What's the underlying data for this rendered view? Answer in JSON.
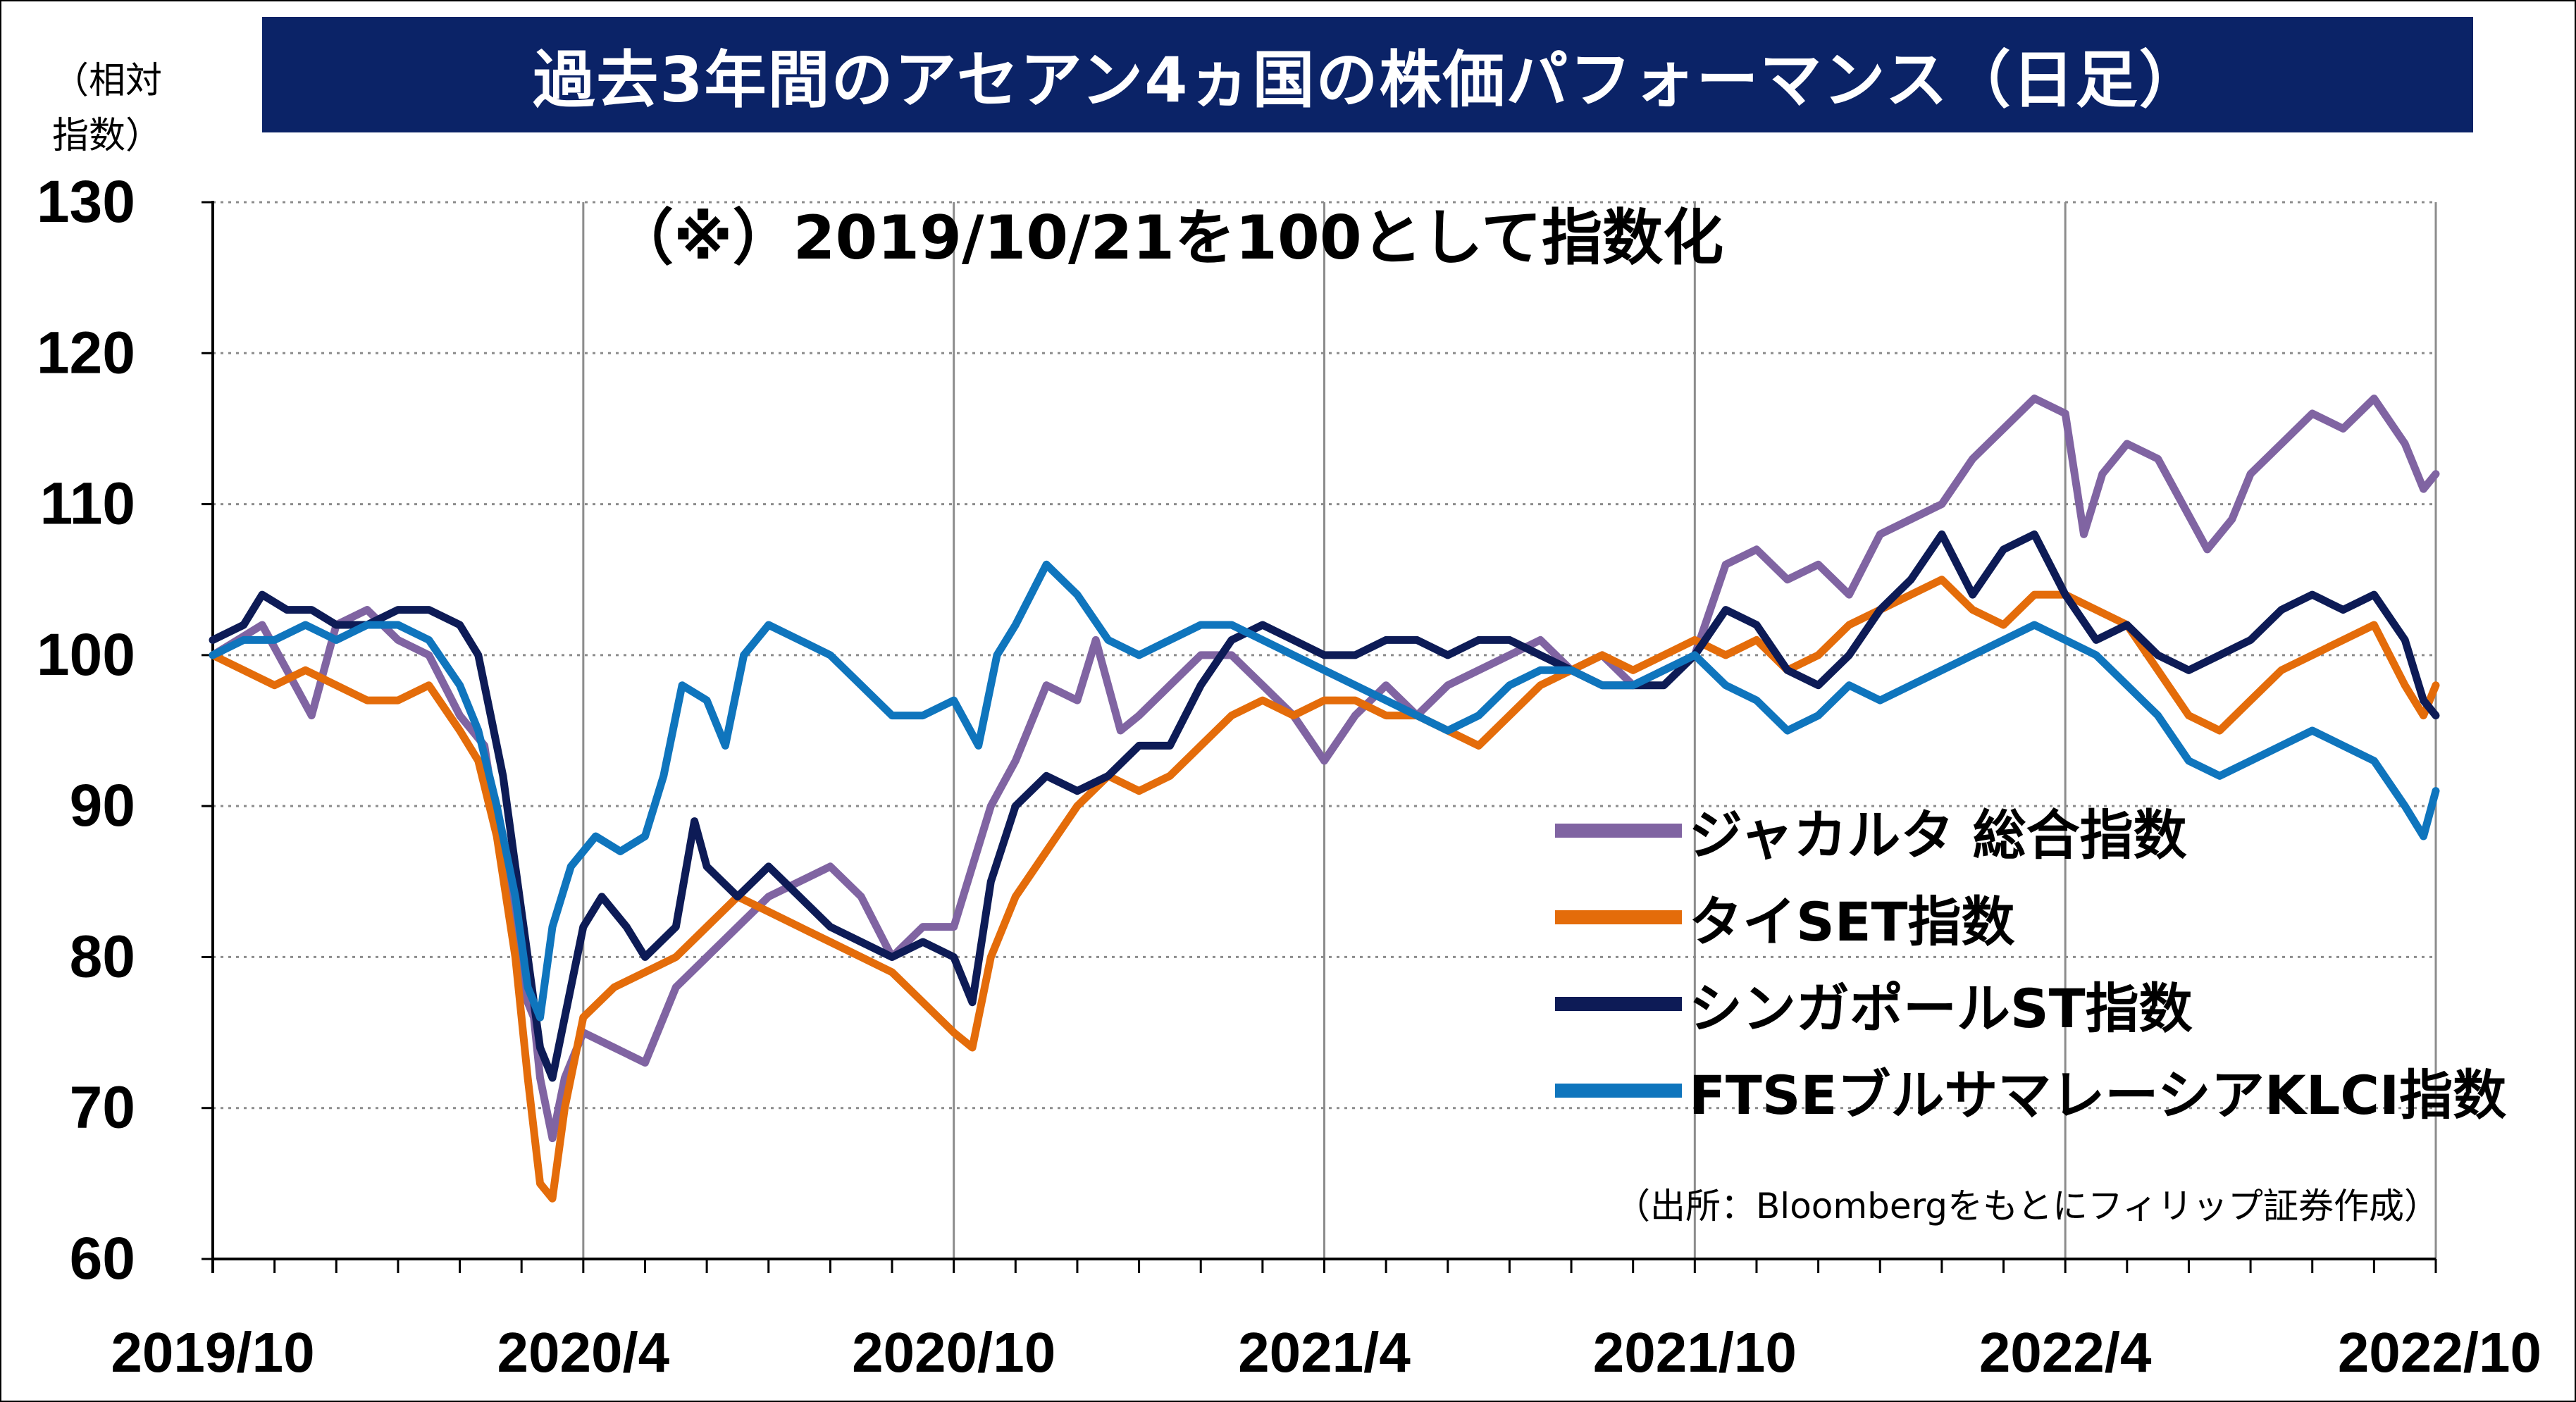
{
  "chart_data": {
    "type": "line",
    "title": "過去3年間のアセアン4ヵ国の株価パフォーマンス（日足）",
    "subtitle": "（※）2019/10/21を100として指数化",
    "y_unit_lines": [
      "（相対",
      "指数）"
    ],
    "source": "（出所：Bloombergをもとにフィリップ証券作成）",
    "x_tick_labels": [
      "2019/10",
      "2020/4",
      "2020/10",
      "2021/4",
      "2021/10",
      "2022/4",
      "2022/10"
    ],
    "y_tick_labels": [
      "60",
      "70",
      "80",
      "90",
      "100",
      "110",
      "120",
      "130"
    ],
    "ylim": [
      60,
      130
    ],
    "y_grid_step": 10,
    "x_range_months": [
      0,
      36
    ],
    "grid": true,
    "legend_position": "lower-right",
    "title_bar_color": "#0b2367",
    "series": [
      {
        "name": "ジャカルタ 総合指数",
        "color": "#8064a2",
        "points": [
          [
            0,
            100
          ],
          [
            0.4,
            101
          ],
          [
            0.8,
            102
          ],
          [
            1.2,
            99
          ],
          [
            1.6,
            96
          ],
          [
            2,
            102
          ],
          [
            2.5,
            103
          ],
          [
            3,
            101
          ],
          [
            3.5,
            100
          ],
          [
            4,
            96
          ],
          [
            4.4,
            94
          ],
          [
            4.7,
            86
          ],
          [
            5,
            78
          ],
          [
            5.2,
            76
          ],
          [
            5.3,
            72
          ],
          [
            5.5,
            68
          ],
          [
            5.7,
            72
          ],
          [
            6,
            75
          ],
          [
            6.5,
            74
          ],
          [
            7,
            73
          ],
          [
            7.5,
            78
          ],
          [
            8,
            80
          ],
          [
            8.5,
            82
          ],
          [
            9,
            84
          ],
          [
            10,
            86
          ],
          [
            10.5,
            84
          ],
          [
            11,
            80
          ],
          [
            11.5,
            82
          ],
          [
            12,
            82
          ],
          [
            12.3,
            86
          ],
          [
            12.6,
            90
          ],
          [
            13,
            93
          ],
          [
            13.5,
            98
          ],
          [
            14,
            97
          ],
          [
            14.3,
            101
          ],
          [
            14.7,
            95
          ],
          [
            15,
            96
          ],
          [
            15.5,
            98
          ],
          [
            16,
            100
          ],
          [
            16.5,
            100
          ],
          [
            17,
            98
          ],
          [
            17.5,
            96
          ],
          [
            18,
            93
          ],
          [
            18.5,
            96
          ],
          [
            19,
            98
          ],
          [
            19.5,
            96
          ],
          [
            20,
            98
          ],
          [
            20.5,
            99
          ],
          [
            21,
            100
          ],
          [
            21.5,
            101
          ],
          [
            22,
            99
          ],
          [
            22.5,
            100
          ],
          [
            23,
            98
          ],
          [
            23.5,
            99
          ],
          [
            24,
            100
          ],
          [
            24.5,
            106
          ],
          [
            25,
            107
          ],
          [
            25.5,
            105
          ],
          [
            26,
            106
          ],
          [
            26.5,
            104
          ],
          [
            27,
            108
          ],
          [
            27.5,
            109
          ],
          [
            28,
            110
          ],
          [
            28.5,
            113
          ],
          [
            29,
            115
          ],
          [
            29.5,
            117
          ],
          [
            30,
            116
          ],
          [
            30.3,
            108
          ],
          [
            30.6,
            112
          ],
          [
            31,
            114
          ],
          [
            31.5,
            113
          ],
          [
            31.9,
            110
          ],
          [
            32.3,
            107
          ],
          [
            32.7,
            109
          ],
          [
            33,
            112
          ],
          [
            33.5,
            114
          ],
          [
            34,
            116
          ],
          [
            34.5,
            115
          ],
          [
            35,
            117
          ],
          [
            35.5,
            114
          ],
          [
            35.8,
            111
          ],
          [
            36,
            112
          ]
        ]
      },
      {
        "name": "タイSET指数",
        "color": "#e46c0a",
        "points": [
          [
            0,
            100
          ],
          [
            0.5,
            99
          ],
          [
            1,
            98
          ],
          [
            1.5,
            99
          ],
          [
            2,
            98
          ],
          [
            2.5,
            97
          ],
          [
            3,
            97
          ],
          [
            3.5,
            98
          ],
          [
            4,
            95
          ],
          [
            4.3,
            93
          ],
          [
            4.6,
            88
          ],
          [
            4.9,
            80
          ],
          [
            5.1,
            72
          ],
          [
            5.3,
            65
          ],
          [
            5.5,
            64
          ],
          [
            5.7,
            70
          ],
          [
            6,
            76
          ],
          [
            6.5,
            78
          ],
          [
            7,
            79
          ],
          [
            7.5,
            80
          ],
          [
            8,
            82
          ],
          [
            8.5,
            84
          ],
          [
            9,
            83
          ],
          [
            9.5,
            82
          ],
          [
            10,
            81
          ],
          [
            10.5,
            80
          ],
          [
            11,
            79
          ],
          [
            11.5,
            77
          ],
          [
            12,
            75
          ],
          [
            12.3,
            74
          ],
          [
            12.6,
            80
          ],
          [
            13,
            84
          ],
          [
            13.5,
            87
          ],
          [
            14,
            90
          ],
          [
            14.5,
            92
          ],
          [
            15,
            91
          ],
          [
            15.5,
            92
          ],
          [
            16,
            94
          ],
          [
            16.5,
            96
          ],
          [
            17,
            97
          ],
          [
            17.5,
            96
          ],
          [
            18,
            97
          ],
          [
            18.5,
            97
          ],
          [
            19,
            96
          ],
          [
            19.5,
            96
          ],
          [
            20,
            95
          ],
          [
            20.5,
            94
          ],
          [
            21,
            96
          ],
          [
            21.5,
            98
          ],
          [
            22,
            99
          ],
          [
            22.5,
            100
          ],
          [
            23,
            99
          ],
          [
            23.5,
            100
          ],
          [
            24,
            101
          ],
          [
            24.5,
            100
          ],
          [
            25,
            101
          ],
          [
            25.5,
            99
          ],
          [
            26,
            100
          ],
          [
            26.5,
            102
          ],
          [
            27,
            103
          ],
          [
            27.5,
            104
          ],
          [
            28,
            105
          ],
          [
            28.5,
            103
          ],
          [
            29,
            102
          ],
          [
            29.5,
            104
          ],
          [
            30,
            104
          ],
          [
            30.5,
            103
          ],
          [
            31,
            102
          ],
          [
            31.5,
            99
          ],
          [
            32,
            96
          ],
          [
            32.5,
            95
          ],
          [
            33,
            97
          ],
          [
            33.5,
            99
          ],
          [
            34,
            100
          ],
          [
            34.5,
            101
          ],
          [
            35,
            102
          ],
          [
            35.5,
            98
          ],
          [
            35.8,
            96
          ],
          [
            36,
            98
          ]
        ]
      },
      {
        "name": "シンガポールST指数",
        "color": "#0d1b56",
        "points": [
          [
            0,
            101
          ],
          [
            0.5,
            102
          ],
          [
            0.8,
            104
          ],
          [
            1.2,
            103
          ],
          [
            1.6,
            103
          ],
          [
            2,
            102
          ],
          [
            2.5,
            102
          ],
          [
            3,
            103
          ],
          [
            3.5,
            103
          ],
          [
            4,
            102
          ],
          [
            4.3,
            100
          ],
          [
            4.5,
            96
          ],
          [
            4.7,
            92
          ],
          [
            4.9,
            86
          ],
          [
            5.1,
            80
          ],
          [
            5.3,
            74
          ],
          [
            5.5,
            72
          ],
          [
            5.7,
            76
          ],
          [
            6,
            82
          ],
          [
            6.3,
            84
          ],
          [
            6.7,
            82
          ],
          [
            7,
            80
          ],
          [
            7.5,
            82
          ],
          [
            7.8,
            89
          ],
          [
            8,
            86
          ],
          [
            8.5,
            84
          ],
          [
            9,
            86
          ],
          [
            9.5,
            84
          ],
          [
            10,
            82
          ],
          [
            10.5,
            81
          ],
          [
            11,
            80
          ],
          [
            11.5,
            81
          ],
          [
            12,
            80
          ],
          [
            12.3,
            77
          ],
          [
            12.6,
            85
          ],
          [
            13,
            90
          ],
          [
            13.5,
            92
          ],
          [
            14,
            91
          ],
          [
            14.5,
            92
          ],
          [
            15,
            94
          ],
          [
            15.5,
            94
          ],
          [
            16,
            98
          ],
          [
            16.5,
            101
          ],
          [
            17,
            102
          ],
          [
            17.5,
            101
          ],
          [
            18,
            100
          ],
          [
            18.5,
            100
          ],
          [
            19,
            101
          ],
          [
            19.5,
            101
          ],
          [
            20,
            100
          ],
          [
            20.5,
            101
          ],
          [
            21,
            101
          ],
          [
            21.5,
            100
          ],
          [
            22,
            99
          ],
          [
            22.5,
            98
          ],
          [
            23,
            98
          ],
          [
            23.5,
            98
          ],
          [
            24,
            100
          ],
          [
            24.5,
            103
          ],
          [
            25,
            102
          ],
          [
            25.5,
            99
          ],
          [
            26,
            98
          ],
          [
            26.5,
            100
          ],
          [
            27,
            103
          ],
          [
            27.5,
            105
          ],
          [
            28,
            108
          ],
          [
            28.5,
            104
          ],
          [
            29,
            107
          ],
          [
            29.5,
            108
          ],
          [
            30,
            104
          ],
          [
            30.5,
            101
          ],
          [
            31,
            102
          ],
          [
            31.5,
            100
          ],
          [
            32,
            99
          ],
          [
            32.5,
            100
          ],
          [
            33,
            101
          ],
          [
            33.5,
            103
          ],
          [
            34,
            104
          ],
          [
            34.5,
            103
          ],
          [
            35,
            104
          ],
          [
            35.5,
            101
          ],
          [
            35.8,
            97
          ],
          [
            36,
            96
          ]
        ]
      },
      {
        "name": "FTSEブルサマレーシアKLCI指数",
        "color": "#0f75bd",
        "points": [
          [
            0,
            100
          ],
          [
            0.5,
            101
          ],
          [
            1,
            101
          ],
          [
            1.5,
            102
          ],
          [
            2,
            101
          ],
          [
            2.5,
            102
          ],
          [
            3,
            102
          ],
          [
            3.5,
            101
          ],
          [
            4,
            98
          ],
          [
            4.3,
            95
          ],
          [
            4.6,
            90
          ],
          [
            4.9,
            84
          ],
          [
            5.1,
            78
          ],
          [
            5.3,
            76
          ],
          [
            5.5,
            82
          ],
          [
            5.8,
            86
          ],
          [
            6.2,
            88
          ],
          [
            6.6,
            87
          ],
          [
            7,
            88
          ],
          [
            7.3,
            92
          ],
          [
            7.6,
            98
          ],
          [
            8,
            97
          ],
          [
            8.3,
            94
          ],
          [
            8.6,
            100
          ],
          [
            9,
            102
          ],
          [
            9.5,
            101
          ],
          [
            10,
            100
          ],
          [
            10.5,
            98
          ],
          [
            11,
            96
          ],
          [
            11.5,
            96
          ],
          [
            12,
            97
          ],
          [
            12.4,
            94
          ],
          [
            12.7,
            100
          ],
          [
            13,
            102
          ],
          [
            13.5,
            106
          ],
          [
            14,
            104
          ],
          [
            14.5,
            101
          ],
          [
            15,
            100
          ],
          [
            15.5,
            101
          ],
          [
            16,
            102
          ],
          [
            16.5,
            102
          ],
          [
            17,
            101
          ],
          [
            17.5,
            100
          ],
          [
            18,
            99
          ],
          [
            18.5,
            98
          ],
          [
            19,
            97
          ],
          [
            19.5,
            96
          ],
          [
            20,
            95
          ],
          [
            20.5,
            96
          ],
          [
            21,
            98
          ],
          [
            21.5,
            99
          ],
          [
            22,
            99
          ],
          [
            22.5,
            98
          ],
          [
            23,
            98
          ],
          [
            23.5,
            99
          ],
          [
            24,
            100
          ],
          [
            24.5,
            98
          ],
          [
            25,
            97
          ],
          [
            25.5,
            95
          ],
          [
            26,
            96
          ],
          [
            26.5,
            98
          ],
          [
            27,
            97
          ],
          [
            27.5,
            98
          ],
          [
            28,
            99
          ],
          [
            28.5,
            100
          ],
          [
            29,
            101
          ],
          [
            29.5,
            102
          ],
          [
            30,
            101
          ],
          [
            30.5,
            100
          ],
          [
            31,
            98
          ],
          [
            31.5,
            96
          ],
          [
            32,
            93
          ],
          [
            32.5,
            92
          ],
          [
            33,
            93
          ],
          [
            33.5,
            94
          ],
          [
            34,
            95
          ],
          [
            34.5,
            94
          ],
          [
            35,
            93
          ],
          [
            35.5,
            90
          ],
          [
            35.8,
            88
          ],
          [
            36,
            91
          ]
        ]
      }
    ]
  }
}
